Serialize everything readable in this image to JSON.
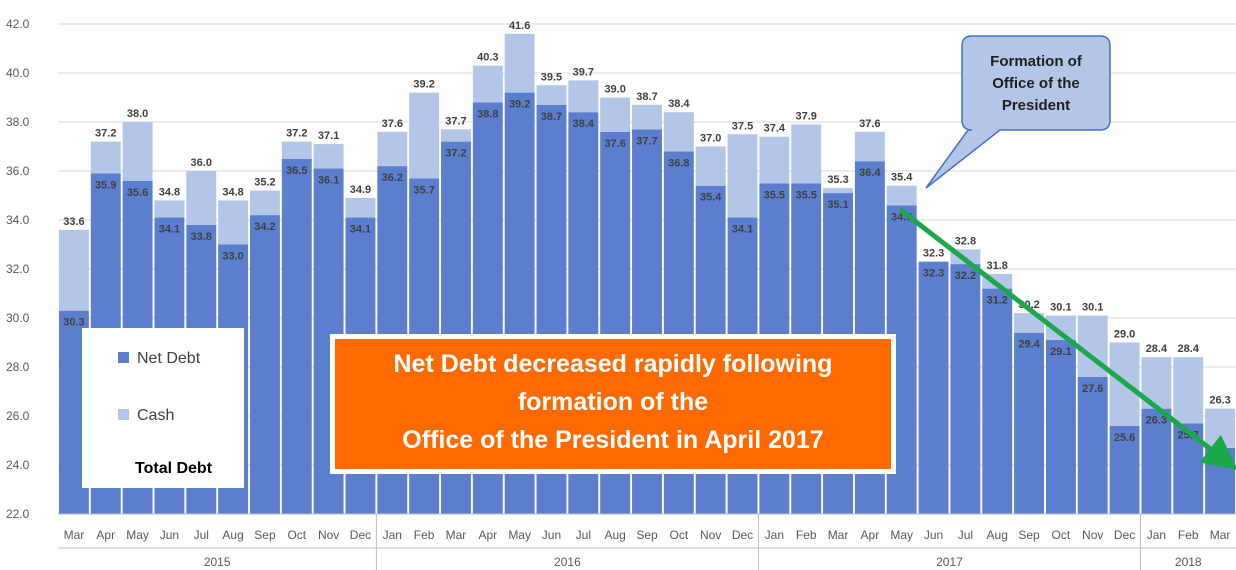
{
  "chart_data": {
    "type": "bar",
    "stacked": true,
    "categories": [
      "Mar",
      "Apr",
      "May",
      "Jun",
      "Jul",
      "Aug",
      "Sep",
      "Oct",
      "Nov",
      "Dec",
      "Jan",
      "Feb",
      "Mar",
      "Apr",
      "May",
      "Jun",
      "Jul",
      "Aug",
      "Sep",
      "Oct",
      "Nov",
      "Dec",
      "Jan",
      "Feb",
      "Mar",
      "Apr",
      "May",
      "Jun",
      "Jul",
      "Aug",
      "Sep",
      "Oct",
      "Nov",
      "Dec",
      "Jan",
      "Feb",
      "Mar"
    ],
    "years": [
      {
        "label": "2015",
        "start": 0,
        "end": 9
      },
      {
        "label": "2016",
        "start": 10,
        "end": 21
      },
      {
        "label": "2017",
        "start": 22,
        "end": 33
      },
      {
        "label": "2018",
        "start": 34,
        "end": 36
      }
    ],
    "series": [
      {
        "name": "Net Debt",
        "color": "#5b7fce",
        "values": [
          30.3,
          35.9,
          35.6,
          34.1,
          33.8,
          33.0,
          34.2,
          36.5,
          36.1,
          34.1,
          36.2,
          35.7,
          37.2,
          38.8,
          39.2,
          38.7,
          38.4,
          37.6,
          37.7,
          36.8,
          35.4,
          34.1,
          35.5,
          35.5,
          35.1,
          36.4,
          34.6,
          32.3,
          32.2,
          31.2,
          29.4,
          29.1,
          27.6,
          25.6,
          26.3,
          25.7,
          24.7
        ],
        "labels": [
          "30.3",
          "35.9",
          "35.6",
          "34.1",
          "33.8",
          "33.0",
          "34.2",
          "36.5",
          "36.1",
          "34.1",
          "36.2",
          "35.7",
          "37.2",
          "38.8",
          "39.2",
          "38.7",
          "38.4",
          "37.6",
          "37.7",
          "36.8",
          "35.4",
          "34.1",
          "35.5",
          "35.5",
          "35.1",
          "36.4",
          "34.6",
          "32.3",
          "32.2",
          "31.2",
          "29.4",
          "29.1",
          "27.6",
          "25.6",
          "26.3",
          "25.7",
          "24.7"
        ]
      },
      {
        "name": "Cash",
        "color": "#b4c6e7",
        "total_values": [
          33.6,
          37.2,
          38.0,
          34.8,
          36.0,
          34.8,
          35.2,
          37.2,
          37.1,
          34.9,
          37.6,
          39.2,
          37.7,
          40.3,
          41.6,
          39.5,
          39.7,
          39.0,
          38.7,
          38.4,
          37.0,
          37.5,
          37.4,
          37.9,
          35.3,
          37.6,
          35.4,
          32.3,
          32.8,
          31.8,
          30.2,
          30.1,
          30.1,
          29.0,
          28.4,
          28.4,
          26.3
        ],
        "labels": [
          "33.6",
          "37.2",
          "38.0",
          "34.8",
          "36.0",
          "34.8",
          "35.2",
          "37.2",
          "37.1",
          "34.9",
          "37.6",
          "39.2",
          "37.7",
          "40.3",
          "41.6",
          "39.5",
          "39.7",
          "39.0",
          "38.7",
          "38.4",
          "37.0",
          "37.5",
          "37.4",
          "37.9",
          "35.3",
          "37.6",
          "35.4",
          "32.3",
          "32.8",
          "31.8",
          "30.2",
          "30.1",
          "30.1",
          "29.0",
          "28.4",
          "28.4",
          "26.3"
        ]
      }
    ],
    "yaxis": {
      "min": 22.0,
      "max": 42.0,
      "step": 2.0,
      "ticks": [
        "22.0",
        "24.0",
        "26.0",
        "28.0",
        "30.0",
        "32.0",
        "34.0",
        "36.0",
        "38.0",
        "40.0",
        "42.0"
      ]
    },
    "grid": true,
    "legend": {
      "placement": "left-bottom",
      "entries": [
        "Net Debt",
        "Cash",
        "Total Debt"
      ]
    },
    "callout": {
      "lines": [
        "Formation of",
        "Office of the",
        "President"
      ]
    },
    "banner": {
      "lines": [
        "Net Debt decreased rapidly following",
        "formation of the",
        "Office of the President in April 2017"
      ],
      "background": "#ff6a00"
    },
    "trend_arrow": {
      "color": "#1aa84a",
      "from_index": 26,
      "to_index": 36
    }
  }
}
